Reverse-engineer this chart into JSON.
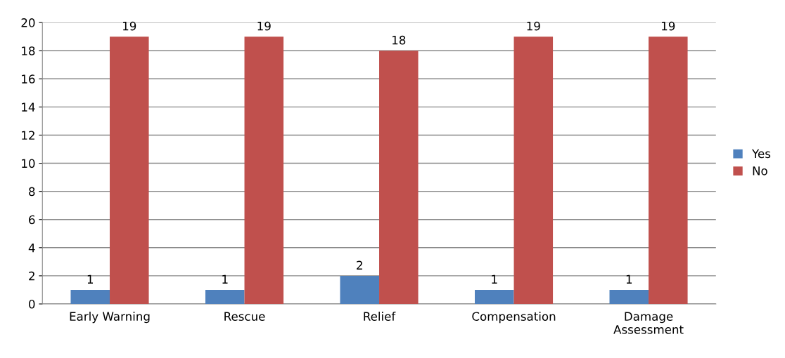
{
  "chart_data": {
    "type": "bar",
    "categories": [
      "Early Warning",
      "Rescue",
      "Relief",
      "Compensation",
      "Damage Assessment"
    ],
    "series": [
      {
        "name": "Yes",
        "color": "#4f81bd",
        "values": [
          1,
          1,
          2,
          1,
          1
        ]
      },
      {
        "name": "No",
        "color": "#c0504d",
        "values": [
          19,
          19,
          18,
          19,
          19
        ]
      }
    ],
    "ylim": [
      0,
      20
    ],
    "yticks": [
      0,
      2,
      4,
      6,
      8,
      10,
      12,
      14,
      16,
      18,
      20
    ],
    "grid": "y",
    "legend": "right",
    "data_labels": true
  }
}
